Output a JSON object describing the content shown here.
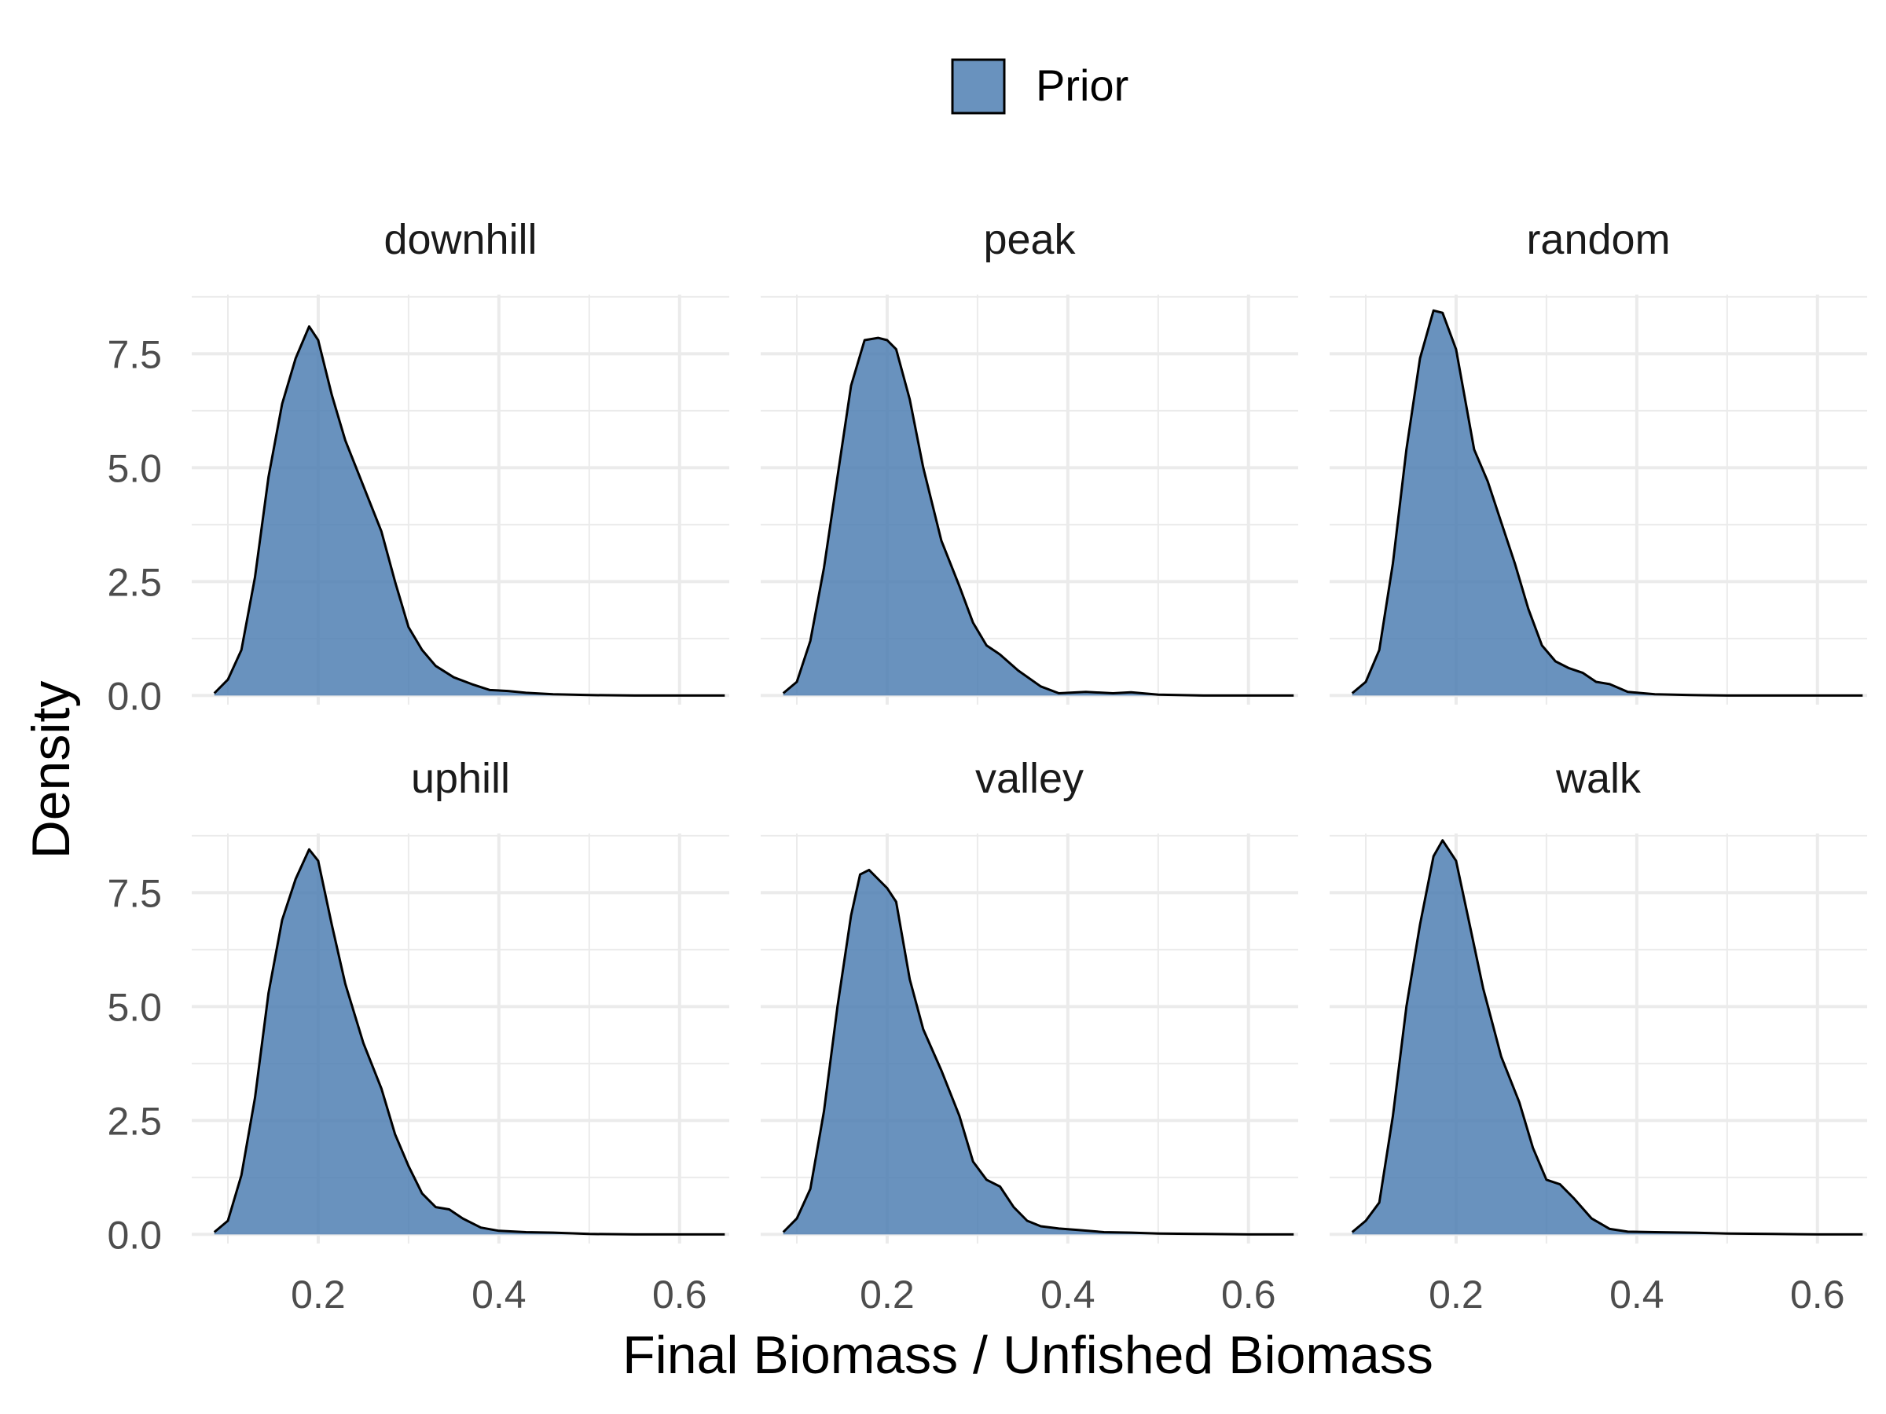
{
  "legend": {
    "label": "Prior",
    "placement": "top"
  },
  "xlabel": "Final Biomass / Unfished Biomass",
  "ylabel": "Density",
  "colors": {
    "fill": "#4f7fb3",
    "fill_opacity": 0.85,
    "stroke": "#000000",
    "grid": "#ebebeb",
    "tick_text": "#4d4d4d"
  },
  "chart_data": {
    "type": "area",
    "layout": "facet 2x3",
    "xlim": [
      0.06,
      0.655
    ],
    "ylim": [
      -0.2,
      8.8
    ],
    "x_ticks": [
      0.2,
      0.4,
      0.6
    ],
    "x_tick_labels": [
      "0.2",
      "0.4",
      "0.6"
    ],
    "y_ticks": [
      0,
      2.5,
      5,
      7.5
    ],
    "y_tick_labels": [
      "0.0",
      "2.5",
      "5.0",
      "7.5"
    ],
    "grid": true,
    "legend": "top",
    "panels": [
      {
        "name": "downhill",
        "points": [
          [
            0.085,
            0.05
          ],
          [
            0.1,
            0.35
          ],
          [
            0.115,
            1.0
          ],
          [
            0.13,
            2.6
          ],
          [
            0.145,
            4.8
          ],
          [
            0.16,
            6.4
          ],
          [
            0.175,
            7.4
          ],
          [
            0.19,
            8.1
          ],
          [
            0.2,
            7.8
          ],
          [
            0.215,
            6.6
          ],
          [
            0.23,
            5.6
          ],
          [
            0.25,
            4.6
          ],
          [
            0.27,
            3.6
          ],
          [
            0.285,
            2.5
          ],
          [
            0.3,
            1.5
          ],
          [
            0.315,
            1.0
          ],
          [
            0.33,
            0.65
          ],
          [
            0.35,
            0.4
          ],
          [
            0.37,
            0.25
          ],
          [
            0.39,
            0.12
          ],
          [
            0.41,
            0.1
          ],
          [
            0.43,
            0.06
          ],
          [
            0.46,
            0.03
          ],
          [
            0.5,
            0.01
          ],
          [
            0.55,
            0.0
          ],
          [
            0.6,
            0.0
          ],
          [
            0.65,
            0.0
          ]
        ]
      },
      {
        "name": "peak",
        "points": [
          [
            0.085,
            0.05
          ],
          [
            0.1,
            0.3
          ],
          [
            0.115,
            1.2
          ],
          [
            0.13,
            2.8
          ],
          [
            0.145,
            4.8
          ],
          [
            0.16,
            6.8
          ],
          [
            0.175,
            7.8
          ],
          [
            0.19,
            7.85
          ],
          [
            0.2,
            7.8
          ],
          [
            0.21,
            7.6
          ],
          [
            0.225,
            6.5
          ],
          [
            0.24,
            5.0
          ],
          [
            0.26,
            3.4
          ],
          [
            0.28,
            2.4
          ],
          [
            0.295,
            1.6
          ],
          [
            0.31,
            1.1
          ],
          [
            0.325,
            0.9
          ],
          [
            0.345,
            0.55
          ],
          [
            0.37,
            0.2
          ],
          [
            0.39,
            0.05
          ],
          [
            0.42,
            0.08
          ],
          [
            0.45,
            0.05
          ],
          [
            0.47,
            0.07
          ],
          [
            0.5,
            0.02
          ],
          [
            0.55,
            0.0
          ],
          [
            0.6,
            0.0
          ],
          [
            0.65,
            0.0
          ]
        ]
      },
      {
        "name": "random",
        "points": [
          [
            0.085,
            0.05
          ],
          [
            0.1,
            0.3
          ],
          [
            0.115,
            1.0
          ],
          [
            0.13,
            2.9
          ],
          [
            0.145,
            5.4
          ],
          [
            0.16,
            7.4
          ],
          [
            0.175,
            8.45
          ],
          [
            0.185,
            8.4
          ],
          [
            0.2,
            7.6
          ],
          [
            0.21,
            6.5
          ],
          [
            0.22,
            5.4
          ],
          [
            0.235,
            4.7
          ],
          [
            0.25,
            3.8
          ],
          [
            0.265,
            2.9
          ],
          [
            0.28,
            1.9
          ],
          [
            0.295,
            1.1
          ],
          [
            0.31,
            0.75
          ],
          [
            0.325,
            0.6
          ],
          [
            0.34,
            0.5
          ],
          [
            0.355,
            0.3
          ],
          [
            0.37,
            0.25
          ],
          [
            0.39,
            0.08
          ],
          [
            0.42,
            0.03
          ],
          [
            0.46,
            0.01
          ],
          [
            0.5,
            0.0
          ],
          [
            0.55,
            0.0
          ],
          [
            0.6,
            0.0
          ],
          [
            0.65,
            0.0
          ]
        ]
      },
      {
        "name": "uphill",
        "points": [
          [
            0.085,
            0.05
          ],
          [
            0.1,
            0.3
          ],
          [
            0.115,
            1.3
          ],
          [
            0.13,
            3.0
          ],
          [
            0.145,
            5.3
          ],
          [
            0.16,
            6.9
          ],
          [
            0.175,
            7.8
          ],
          [
            0.19,
            8.45
          ],
          [
            0.2,
            8.2
          ],
          [
            0.215,
            6.8
          ],
          [
            0.23,
            5.5
          ],
          [
            0.25,
            4.2
          ],
          [
            0.27,
            3.2
          ],
          [
            0.285,
            2.2
          ],
          [
            0.3,
            1.5
          ],
          [
            0.315,
            0.9
          ],
          [
            0.33,
            0.6
          ],
          [
            0.345,
            0.55
          ],
          [
            0.36,
            0.35
          ],
          [
            0.38,
            0.15
          ],
          [
            0.4,
            0.08
          ],
          [
            0.43,
            0.05
          ],
          [
            0.46,
            0.04
          ],
          [
            0.5,
            0.01
          ],
          [
            0.55,
            0.0
          ],
          [
            0.6,
            0.0
          ],
          [
            0.65,
            0.0
          ]
        ]
      },
      {
        "name": "valley",
        "points": [
          [
            0.085,
            0.05
          ],
          [
            0.1,
            0.35
          ],
          [
            0.115,
            1.0
          ],
          [
            0.13,
            2.7
          ],
          [
            0.145,
            5.0
          ],
          [
            0.16,
            7.0
          ],
          [
            0.17,
            7.9
          ],
          [
            0.18,
            8.0
          ],
          [
            0.19,
            7.8
          ],
          [
            0.2,
            7.6
          ],
          [
            0.21,
            7.3
          ],
          [
            0.225,
            5.6
          ],
          [
            0.24,
            4.5
          ],
          [
            0.26,
            3.6
          ],
          [
            0.28,
            2.6
          ],
          [
            0.295,
            1.6
          ],
          [
            0.31,
            1.2
          ],
          [
            0.325,
            1.05
          ],
          [
            0.34,
            0.6
          ],
          [
            0.355,
            0.3
          ],
          [
            0.37,
            0.18
          ],
          [
            0.39,
            0.13
          ],
          [
            0.41,
            0.1
          ],
          [
            0.44,
            0.05
          ],
          [
            0.47,
            0.04
          ],
          [
            0.5,
            0.02
          ],
          [
            0.55,
            0.01
          ],
          [
            0.6,
            0.0
          ],
          [
            0.65,
            0.0
          ]
        ]
      },
      {
        "name": "walk",
        "points": [
          [
            0.085,
            0.05
          ],
          [
            0.1,
            0.3
          ],
          [
            0.115,
            0.7
          ],
          [
            0.13,
            2.6
          ],
          [
            0.145,
            5.0
          ],
          [
            0.16,
            6.8
          ],
          [
            0.175,
            8.3
          ],
          [
            0.185,
            8.65
          ],
          [
            0.2,
            8.2
          ],
          [
            0.215,
            6.8
          ],
          [
            0.23,
            5.4
          ],
          [
            0.25,
            3.9
          ],
          [
            0.27,
            2.9
          ],
          [
            0.285,
            1.9
          ],
          [
            0.3,
            1.2
          ],
          [
            0.315,
            1.1
          ],
          [
            0.33,
            0.8
          ],
          [
            0.35,
            0.35
          ],
          [
            0.37,
            0.12
          ],
          [
            0.39,
            0.06
          ],
          [
            0.42,
            0.05
          ],
          [
            0.46,
            0.04
          ],
          [
            0.5,
            0.02
          ],
          [
            0.55,
            0.01
          ],
          [
            0.6,
            0.0
          ],
          [
            0.65,
            0.0
          ]
        ]
      }
    ]
  }
}
